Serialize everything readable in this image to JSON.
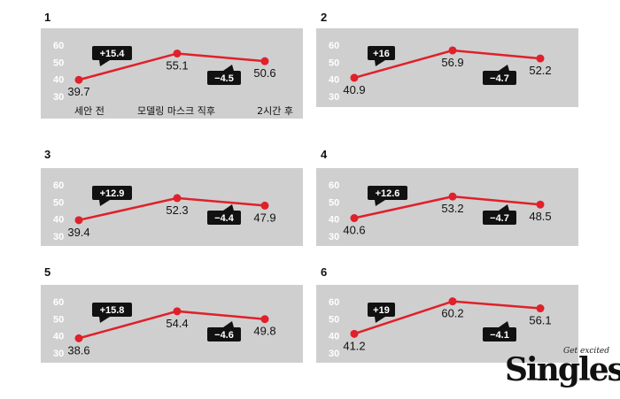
{
  "chart_data": [
    {
      "type": "line",
      "panel": "1",
      "categories": [
        "세안 전",
        "모델링 마스크 직후",
        "2시간 후"
      ],
      "values": [
        39.7,
        55.1,
        50.6
      ],
      "increase_label": "+15.4",
      "decrease_label": "−4.5",
      "yticks": [
        30,
        40,
        50,
        60
      ],
      "ylim": [
        30,
        60
      ]
    },
    {
      "type": "line",
      "panel": "2",
      "categories": [
        "",
        "",
        ""
      ],
      "values": [
        40.9,
        56.9,
        52.2
      ],
      "increase_label": "+16",
      "decrease_label": "−4.7",
      "yticks": [
        30,
        40,
        50,
        60
      ],
      "ylim": [
        30,
        60
      ]
    },
    {
      "type": "line",
      "panel": "3",
      "categories": [
        "",
        "",
        ""
      ],
      "values": [
        39.4,
        52.3,
        47.9
      ],
      "increase_label": "+12.9",
      "decrease_label": "−4.4",
      "yticks": [
        30,
        40,
        50,
        60
      ],
      "ylim": [
        30,
        60
      ]
    },
    {
      "type": "line",
      "panel": "4",
      "categories": [
        "",
        "",
        ""
      ],
      "values": [
        40.6,
        53.2,
        48.5
      ],
      "increase_label": "+12.6",
      "decrease_label": "−4.7",
      "yticks": [
        30,
        40,
        50,
        60
      ],
      "ylim": [
        30,
        60
      ]
    },
    {
      "type": "line",
      "panel": "5",
      "categories": [
        "",
        "",
        ""
      ],
      "values": [
        38.6,
        54.4,
        49.8
      ],
      "increase_label": "+15.8",
      "decrease_label": "−4.6",
      "yticks": [
        30,
        40,
        50,
        60
      ],
      "ylim": [
        30,
        60
      ]
    },
    {
      "type": "line",
      "panel": "6",
      "categories": [
        "",
        "",
        ""
      ],
      "values": [
        41.2,
        60.2,
        56.1
      ],
      "increase_label": "+19",
      "decrease_label": "−4.1",
      "yticks": [
        30,
        40,
        50,
        60
      ],
      "ylim": [
        30,
        60
      ]
    }
  ],
  "colors": {
    "line": "#e0202a",
    "panel_bg": "#cfcfcf",
    "tick": "#ffffff",
    "badge_bg": "#111111",
    "badge_text": "#ffffff"
  },
  "logo": {
    "tagline": "Get excited",
    "name": "Singles"
  }
}
